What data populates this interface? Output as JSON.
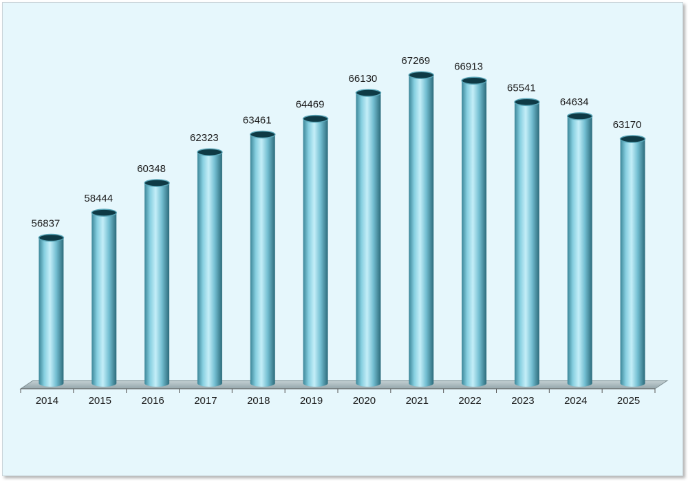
{
  "chart_data": {
    "type": "bar",
    "style": "3d-cylinder",
    "categories": [
      "2014",
      "2015",
      "2016",
      "2017",
      "2018",
      "2019",
      "2020",
      "2021",
      "2022",
      "2023",
      "2024",
      "2025"
    ],
    "values": [
      56837,
      58444,
      60348,
      62323,
      63461,
      64469,
      66130,
      67269,
      66913,
      65541,
      64634,
      63170
    ],
    "value_labels": [
      "56837",
      "58444",
      "60348",
      "62323",
      "63461",
      "64469",
      "66130",
      "67269",
      "66913",
      "65541",
      "64634",
      "63170"
    ],
    "title": "",
    "xlabel": "",
    "ylabel": "",
    "ylim": [
      47500,
      69000
    ],
    "grid": false,
    "legend": "none",
    "colors": {
      "background": "#e6f7fc",
      "bar": "#7cc7d9",
      "bar_dark": "#2f6f80",
      "bar_top": "#0e3a45",
      "floor": "#a9b8bc",
      "axis": "#555555"
    }
  }
}
